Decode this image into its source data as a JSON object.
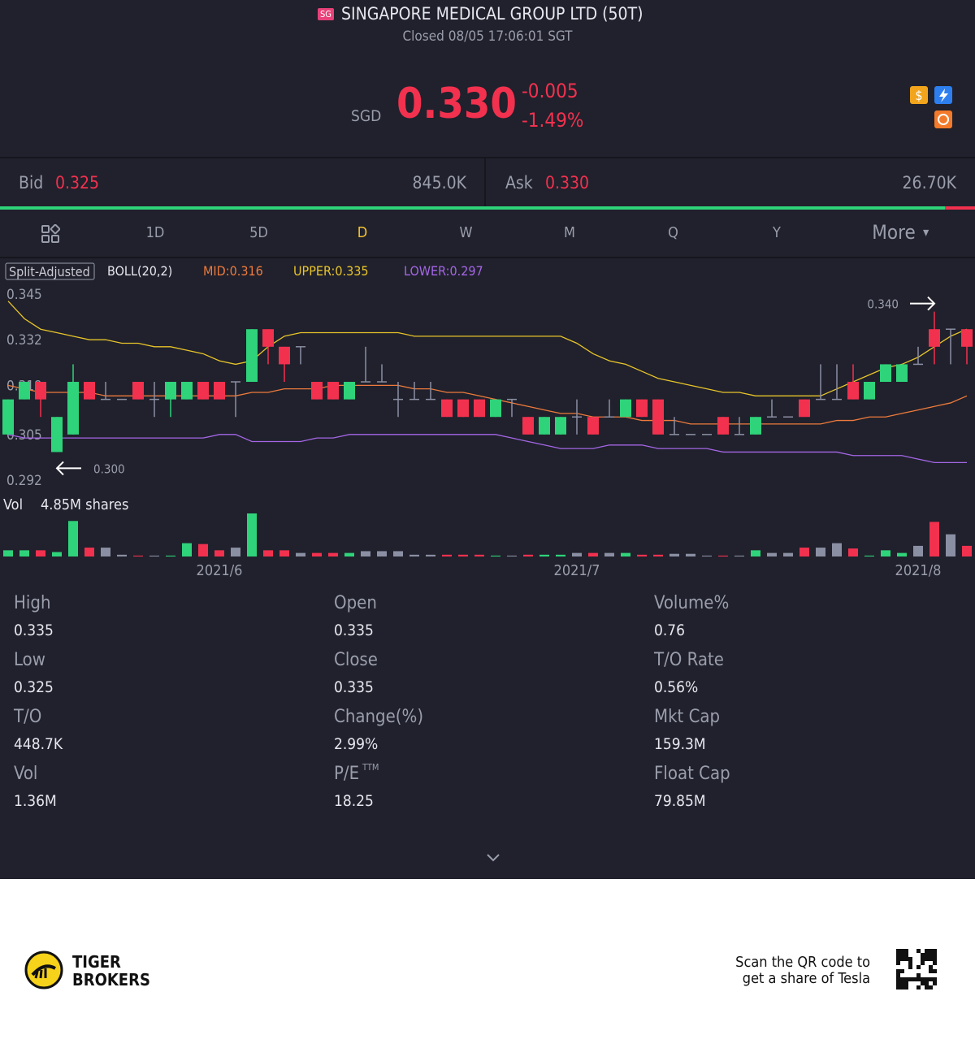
{
  "header": {
    "badge": "SG",
    "title": "SINGAPORE MEDICAL GROUP LTD (50T)",
    "status": "Closed 08/05 17:06:01 SGT",
    "currency": "SGD",
    "price": "0.330",
    "change": "-0.005",
    "change_pct": "-1.49%"
  },
  "quote": {
    "bid_label": "Bid",
    "bid": "0.325",
    "bid_size": {
      "value": 845000,
      "label": "845.0K"
    },
    "ask_label": "Ask",
    "ask": "0.330",
    "ask_size": {
      "value": 26700,
      "label": "26.70K"
    }
  },
  "tabs": [
    "1D",
    "5D",
    "D",
    "W",
    "M",
    "Q",
    "Y",
    "More"
  ],
  "active_tab": 2,
  "chart_data": {
    "type": "candlestick",
    "adjust": "Split-Adjusted",
    "indicator": "BOLL(20,2)",
    "up_color": "#2fd37a",
    "down_color": "#f2314f",
    "flat_color": "#8b8fa3",
    "categories": [
      null,
      null,
      null,
      null,
      null,
      null,
      null,
      null,
      null,
      null,
      null,
      null,
      null,
      "2021/6",
      null,
      null,
      null,
      null,
      null,
      null,
      null,
      null,
      null,
      null,
      null,
      null,
      null,
      null,
      null,
      null,
      null,
      null,
      null,
      null,
      null,
      "2021/7",
      null,
      null,
      null,
      null,
      null,
      null,
      null,
      null,
      null,
      null,
      null,
      null,
      null,
      null,
      null,
      null,
      null,
      null,
      null,
      null,
      "2021/8",
      null,
      null,
      null
    ],
    "open": [
      0.305,
      0.315,
      0.32,
      0.3,
      0.305,
      0.32,
      0.315,
      0.315,
      0.32,
      0.315,
      0.315,
      0.315,
      0.32,
      0.32,
      0.32,
      0.32,
      0.335,
      0.33,
      0.33,
      0.32,
      0.32,
      0.315,
      0.32,
      0.32,
      0.315,
      0.315,
      0.315,
      0.315,
      0.315,
      0.315,
      0.31,
      0.315,
      0.31,
      0.305,
      0.305,
      0.31,
      0.31,
      0.31,
      0.31,
      0.315,
      0.315,
      0.305,
      0.305,
      0.305,
      0.31,
      0.305,
      0.305,
      0.31,
      0.31,
      0.315,
      0.315,
      0.315,
      0.32,
      0.315,
      0.32,
      0.32,
      0.325,
      0.335,
      0.335,
      0.335
    ],
    "high": [
      0.315,
      0.32,
      0.32,
      0.31,
      0.325,
      0.32,
      0.32,
      0.315,
      0.32,
      0.32,
      0.32,
      0.32,
      0.32,
      0.32,
      0.32,
      0.335,
      0.335,
      0.33,
      0.33,
      0.32,
      0.32,
      0.32,
      0.33,
      0.325,
      0.32,
      0.32,
      0.32,
      0.315,
      0.315,
      0.315,
      0.315,
      0.315,
      0.31,
      0.31,
      0.31,
      0.315,
      0.31,
      0.315,
      0.315,
      0.315,
      0.315,
      0.31,
      0.305,
      0.305,
      0.31,
      0.31,
      0.31,
      0.315,
      0.31,
      0.315,
      0.325,
      0.325,
      0.325,
      0.32,
      0.325,
      0.325,
      0.33,
      0.34,
      0.335,
      0.335
    ],
    "low": [
      0.305,
      0.315,
      0.31,
      0.3,
      0.305,
      0.315,
      0.315,
      0.315,
      0.315,
      0.31,
      0.31,
      0.315,
      0.315,
      0.315,
      0.31,
      0.32,
      0.325,
      0.32,
      0.325,
      0.315,
      0.315,
      0.315,
      0.32,
      0.32,
      0.31,
      0.315,
      0.315,
      0.31,
      0.31,
      0.31,
      0.31,
      0.31,
      0.305,
      0.305,
      0.305,
      0.305,
      0.305,
      0.31,
      0.31,
      0.31,
      0.305,
      0.305,
      0.305,
      0.305,
      0.305,
      0.305,
      0.305,
      0.31,
      0.31,
      0.31,
      0.315,
      0.315,
      0.315,
      0.315,
      0.32,
      0.32,
      0.325,
      0.325,
      0.325,
      0.325
    ],
    "close": [
      0.315,
      0.32,
      0.315,
      0.31,
      0.32,
      0.315,
      0.315,
      0.315,
      0.315,
      0.315,
      0.32,
      0.32,
      0.315,
      0.315,
      0.32,
      0.335,
      0.33,
      0.325,
      0.33,
      0.315,
      0.315,
      0.32,
      0.32,
      0.32,
      0.315,
      0.315,
      0.315,
      0.31,
      0.31,
      0.31,
      0.315,
      0.315,
      0.305,
      0.31,
      0.31,
      0.31,
      0.305,
      0.31,
      0.315,
      0.31,
      0.305,
      0.305,
      0.305,
      0.305,
      0.305,
      0.305,
      0.31,
      0.31,
      0.31,
      0.31,
      0.315,
      0.315,
      0.315,
      0.32,
      0.325,
      0.325,
      0.325,
      0.33,
      0.335,
      0.33
    ],
    "series": [
      {
        "name": "MID:0.316",
        "color": "#ee7a3c",
        "values": [
          0.319,
          0.318,
          0.317,
          0.317,
          0.317,
          0.317,
          0.316,
          0.316,
          0.316,
          0.316,
          0.316,
          0.316,
          0.316,
          0.316,
          0.316,
          0.317,
          0.317,
          0.318,
          0.318,
          0.318,
          0.319,
          0.319,
          0.319,
          0.319,
          0.319,
          0.318,
          0.318,
          0.317,
          0.317,
          0.316,
          0.315,
          0.314,
          0.313,
          0.312,
          0.311,
          0.311,
          0.31,
          0.31,
          0.31,
          0.309,
          0.309,
          0.309,
          0.308,
          0.308,
          0.308,
          0.308,
          0.308,
          0.308,
          0.308,
          0.308,
          0.308,
          0.309,
          0.309,
          0.31,
          0.31,
          0.311,
          0.312,
          0.313,
          0.314,
          0.316
        ]
      },
      {
        "name": "UPPER:0.335",
        "color": "#e8c42a",
        "values": [
          0.343,
          0.338,
          0.335,
          0.334,
          0.333,
          0.332,
          0.332,
          0.331,
          0.331,
          0.33,
          0.33,
          0.329,
          0.328,
          0.326,
          0.325,
          0.326,
          0.33,
          0.333,
          0.334,
          0.334,
          0.334,
          0.334,
          0.334,
          0.334,
          0.334,
          0.333,
          0.333,
          0.333,
          0.333,
          0.333,
          0.333,
          0.333,
          0.333,
          0.333,
          0.333,
          0.331,
          0.328,
          0.326,
          0.325,
          0.323,
          0.321,
          0.32,
          0.319,
          0.318,
          0.317,
          0.317,
          0.316,
          0.316,
          0.316,
          0.316,
          0.316,
          0.318,
          0.32,
          0.322,
          0.324,
          0.325,
          0.327,
          0.33,
          0.333,
          0.335
        ]
      },
      {
        "name": "LOWER:0.297",
        "color": "#a566e6",
        "values": [
          0.305,
          0.304,
          0.304,
          0.304,
          0.304,
          0.304,
          0.304,
          0.304,
          0.304,
          0.304,
          0.304,
          0.304,
          0.304,
          0.305,
          0.305,
          0.303,
          0.303,
          0.303,
          0.303,
          0.304,
          0.304,
          0.305,
          0.305,
          0.305,
          0.305,
          0.305,
          0.305,
          0.305,
          0.305,
          0.305,
          0.305,
          0.304,
          0.303,
          0.302,
          0.301,
          0.301,
          0.301,
          0.302,
          0.302,
          0.302,
          0.301,
          0.301,
          0.301,
          0.301,
          0.3,
          0.3,
          0.3,
          0.3,
          0.3,
          0.3,
          0.3,
          0.3,
          0.299,
          0.299,
          0.299,
          0.299,
          0.298,
          0.297,
          0.297,
          0.297
        ]
      }
    ],
    "ylim": [
      0.292,
      0.345
    ],
    "yticks": [
      0.345,
      0.332,
      0.319,
      0.305,
      0.292
    ],
    "annotations": [
      {
        "value": 0.34,
        "label": "0.340"
      },
      {
        "value": 0.3,
        "label": "0.300"
      }
    ],
    "volume": {
      "label": "Vol",
      "max_label": "4.85M shares",
      "values": [
        0.7,
        0.7,
        0.7,
        0.5,
        4.0,
        1.0,
        1.0,
        0.2,
        0.1,
        0.1,
        0.1,
        1.5,
        1.4,
        0.7,
        1.0,
        4.85,
        0.7,
        0.7,
        0.4,
        0.4,
        0.4,
        0.4,
        0.6,
        0.6,
        0.6,
        0.2,
        0.2,
        0.2,
        0.2,
        0.2,
        0.1,
        0.1,
        0.2,
        0.2,
        0.2,
        0.4,
        0.4,
        0.4,
        0.4,
        0.2,
        0.2,
        0.3,
        0.3,
        0.1,
        0.1,
        0.1,
        0.7,
        0.4,
        0.4,
        1.0,
        1.0,
        1.5,
        0.9,
        0.1,
        0.7,
        0.4,
        1.2,
        3.9,
        2.5,
        1.2
      ]
    }
  },
  "stats": [
    [
      {
        "label": "High",
        "value": "0.335"
      },
      {
        "label": "Open",
        "value": "0.335"
      },
      {
        "label": "Volume%",
        "value": "0.76"
      }
    ],
    [
      {
        "label": "Low",
        "value": "0.325"
      },
      {
        "label": "Close",
        "value": "0.335"
      },
      {
        "label": "T/O Rate",
        "value": "0.56%"
      }
    ],
    [
      {
        "label": "T/O",
        "value": "448.7K"
      },
      {
        "label": "Change(%)",
        "value": "2.99%"
      },
      {
        "label": "Mkt Cap",
        "value": "159.3M"
      }
    ],
    [
      {
        "label": "Vol",
        "value": "1.36M"
      },
      {
        "label": "P/E",
        "sup": "TTM",
        "value": "18.25"
      },
      {
        "label": "Float Cap",
        "value": "79.85M"
      }
    ]
  ],
  "footer": {
    "brand_line1": "TIGER",
    "brand_line2": "BROKERS",
    "promo_line1": "Scan the QR code to",
    "promo_line2": "get a share of Tesla"
  }
}
